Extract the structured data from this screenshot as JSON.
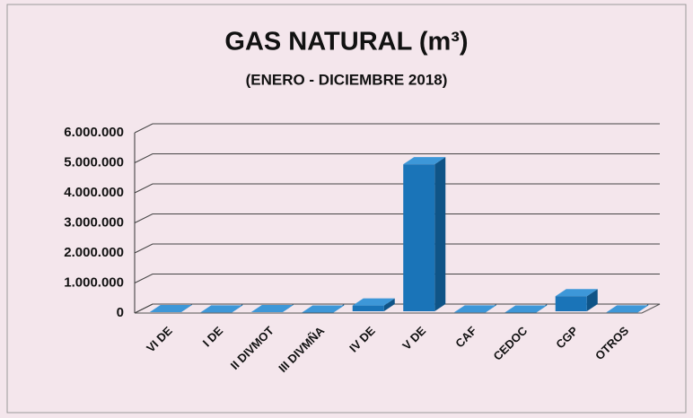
{
  "chart_data": {
    "type": "bar3d",
    "title": "GAS NATURAL (m³)",
    "subtitle": "(ENERO - DICIEMBRE 2018)",
    "categories": [
      "VI DE",
      "I DE",
      "II DIVMOT",
      "III DIVMÑA",
      "IV DE",
      "V DE",
      "CAF",
      "CEDOC",
      "CGP",
      "OTROS"
    ],
    "values": [
      30000,
      20000,
      30000,
      15000,
      250000,
      4950000,
      20000,
      15000,
      560000,
      20000
    ],
    "color": "#1a74b8",
    "ylim": [
      0,
      6000000
    ],
    "yticks": [
      {
        "value": 0,
        "label": "0"
      },
      {
        "value": 1000000,
        "label": "1.000.000"
      },
      {
        "value": 2000000,
        "label": "2.000.000"
      },
      {
        "value": 3000000,
        "label": "3.000.000"
      },
      {
        "value": 4000000,
        "label": "4.000.000"
      },
      {
        "value": 5000000,
        "label": "5.000.000"
      },
      {
        "value": 6000000,
        "label": "6.000.000"
      }
    ],
    "grid": true
  }
}
